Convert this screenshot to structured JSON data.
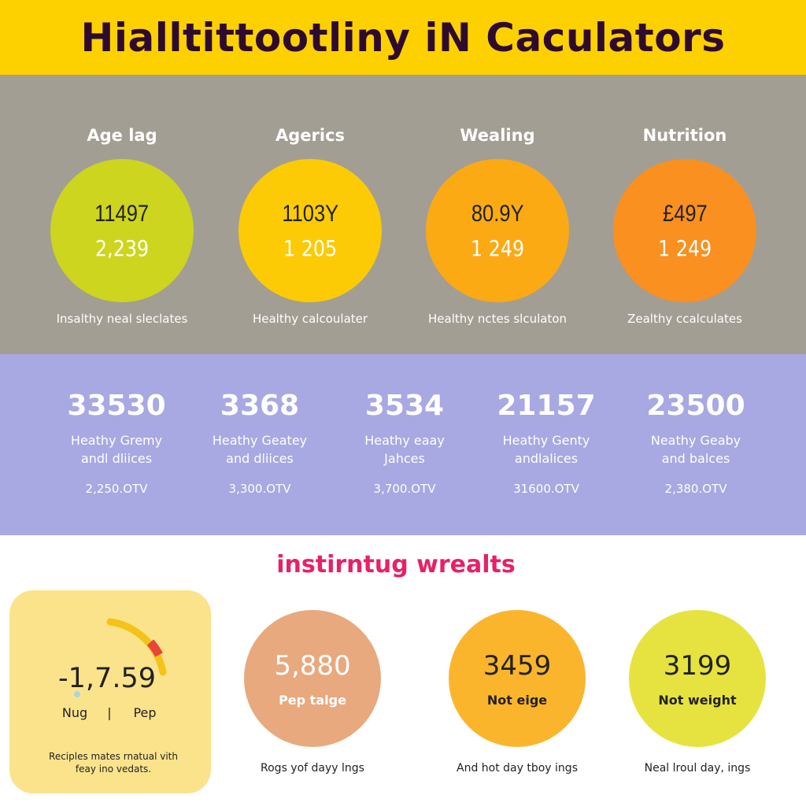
{
  "header": {
    "title": "Hialltittootliny iN Caculators"
  },
  "calculators": [
    {
      "label": "Age lag",
      "main": "11497",
      "sub": "2,239",
      "caption": "Insalthy neal sleclates",
      "color": "#cdd51e"
    },
    {
      "label": "Agerics",
      "main": "1103Y",
      "sub": "1 205",
      "caption": "Healthy calcoulater",
      "color": "#fccb05"
    },
    {
      "label": "Wealing",
      "main": "80.9Y",
      "sub": "1 249",
      "caption": "Healthy nctes slculaton",
      "color": "#fbaa14"
    },
    {
      "label": "Nutrition",
      "main": "£497",
      "sub": "1 249",
      "caption": "Zealthy ccalculates",
      "color": "#fa9020"
    }
  ],
  "stats": [
    {
      "number": "33530",
      "line1": "Heathy Gremy",
      "line2": "andl dliices",
      "value": "2,250.OTV"
    },
    {
      "number": "3368",
      "line1": "Heathy Geatey",
      "line2": "and dliices",
      "value": "3,300.OTV"
    },
    {
      "number": "3534",
      "line1": "Heathy eaay",
      "line2": "Jahces",
      "value": "3,700.OTV"
    },
    {
      "number": "21157",
      "line1": "Heathy Genty",
      "line2": "andlalices",
      "value": "31600.OTV"
    },
    {
      "number": "23500",
      "line1": "Neathy Geaby",
      "line2": "and balces",
      "value": "2,380.OTV"
    }
  ],
  "results": {
    "title": "instirntug wrealts",
    "gauge_card": {
      "value": "-1,7.59",
      "left_label": "Nug",
      "separator": "|",
      "right_label": "Pep",
      "line1": "Reciples mates rnatual vith",
      "line2": "feay ino vedats."
    },
    "circles": [
      {
        "number": "5,880",
        "label": "Pep talge",
        "caption": "Rogs yof dayy lngs",
        "color": "#e8a97e",
        "text_color": "#ffffff"
      },
      {
        "number": "3459",
        "label": "Not eige",
        "caption": "And hot day tboy ings",
        "color": "#fbb52c",
        "text_color": "#222222"
      },
      {
        "number": "3199",
        "label": "Not weight",
        "caption": "Neal lroul day, ings",
        "color": "#e6e340",
        "text_color": "#222222"
      }
    ]
  }
}
